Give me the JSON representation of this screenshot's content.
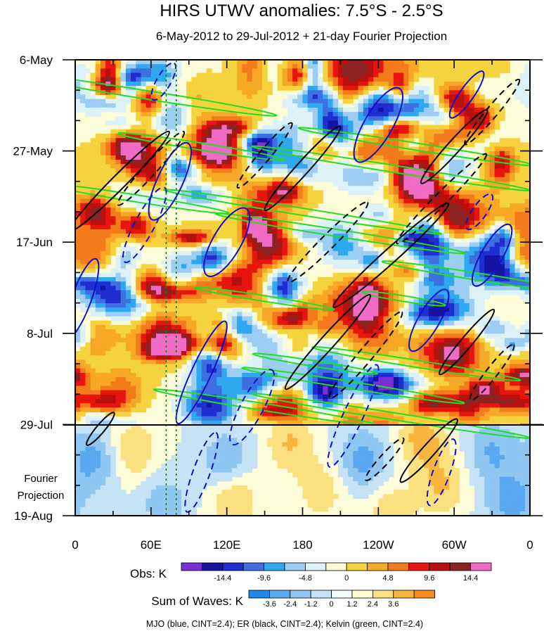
{
  "chart_data": {
    "type": "heatmap",
    "title": "HIRS UTWV anomalies: 7.5°S - 2.5°S",
    "subtitle": "6-May-2012 to 29-Jul-2012 + 21-day Fourier Projection",
    "x_ticks": [
      "0",
      "60E",
      "120E",
      "180",
      "120W",
      "60W",
      "0"
    ],
    "x_range_degE": [
      0,
      360
    ],
    "y_ticks": [
      "6-May",
      "27-May",
      "17-Jun",
      "8-Jul",
      "29-Jul",
      "19-Aug"
    ],
    "y_range_days": [
      0,
      105
    ],
    "observation_end_label": "29-Jul",
    "projection_label_lines": [
      "Fourier",
      "Projection"
    ],
    "reference_longitudes_degE": [
      72,
      80
    ],
    "obs_colorbar": {
      "label": "Obs: K",
      "tick_labels": [
        "-14.4",
        "-9.6",
        "-4.8",
        "0",
        "4.8",
        "9.6",
        "14.4"
      ],
      "colors": [
        "#7a2fd6",
        "#1414a0",
        "#1f2ed0",
        "#3d6fe0",
        "#2ea8ee",
        "#9ccdf2",
        "#dcf1f8",
        "#fdfbd2",
        "#f5d33f",
        "#f7a827",
        "#f47b1b",
        "#e8150f",
        "#b8110d",
        "#8b2323",
        "#f06bc4"
      ]
    },
    "waves_colorbar": {
      "label": "Sum of Waves: K",
      "tick_labels": [
        "-3.6",
        "-2.4",
        "-1.2",
        "0",
        "1.2",
        "2.4",
        "3.6"
      ],
      "colors": [
        "#1e88ea",
        "#5aa8ef",
        "#8fc6f2",
        "#c6e3f6",
        "#f4f9fb",
        "#fefbd5",
        "#fbe080",
        "#f7b53e",
        "#f38a1a"
      ]
    },
    "contours": [
      {
        "name": "MJO",
        "color": "#1010c8",
        "cint": 2.4
      },
      {
        "name": "ER",
        "color": "#000000",
        "cint": 2.4
      },
      {
        "name": "Kelvin",
        "color": "#22dd22",
        "cint": 2.4
      }
    ]
  },
  "footnote": "MJO (blue, CINT=2.4); ER (black, CINT=2.4); Kelvin (green, CINT=2.4)"
}
